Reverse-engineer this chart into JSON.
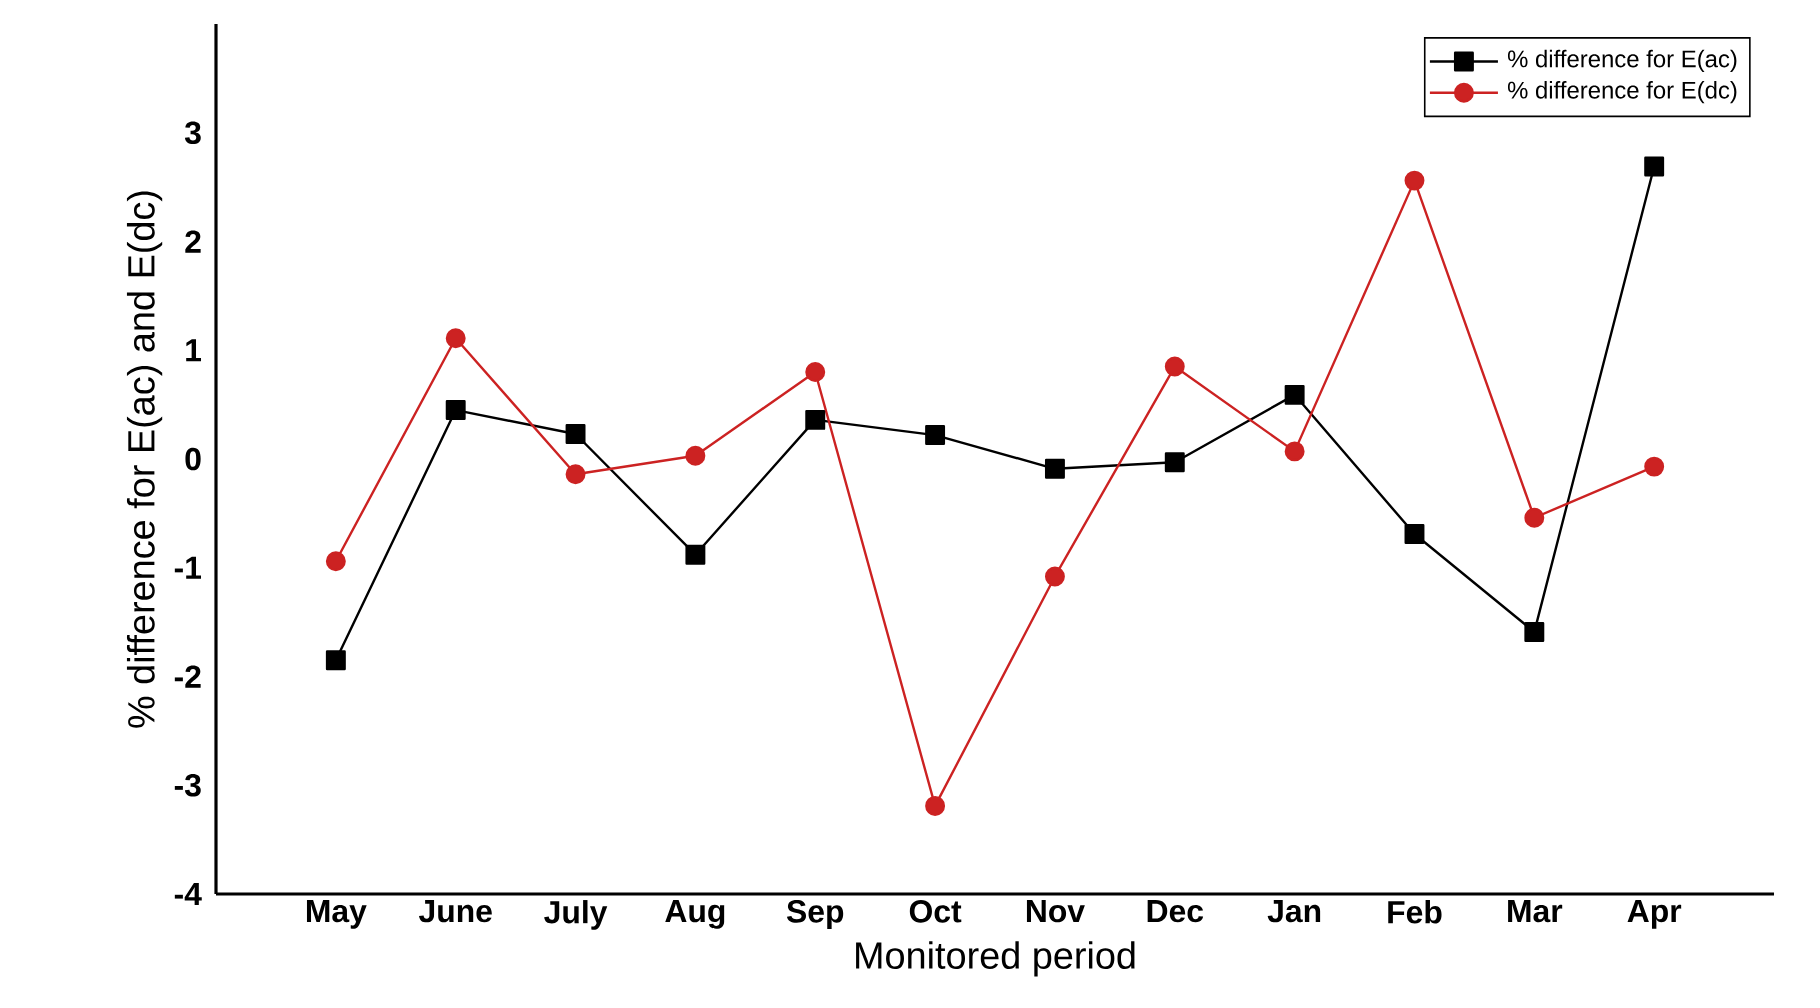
{
  "chart_data": {
    "type": "line",
    "xlabel": "Monitored period",
    "ylabel": "% difference for E(ac) and E(dc)",
    "categories": [
      "May",
      "June",
      "July",
      "Aug",
      "Sep",
      "Oct",
      "Nov",
      "Dec",
      "Jan",
      "Feb",
      "Mar",
      "Apr"
    ],
    "series": [
      {
        "name": "% difference for E(ac)",
        "color": "#000000",
        "marker": "square",
        "values": [
          -1.85,
          0.45,
          0.23,
          -0.88,
          0.36,
          0.22,
          -0.09,
          -0.03,
          0.59,
          -0.69,
          -1.59,
          2.69
        ]
      },
      {
        "name": "% difference for E(dc)",
        "color": "#cc2222",
        "marker": "circle",
        "values": [
          -0.94,
          1.11,
          -0.14,
          0.03,
          0.8,
          -3.19,
          -1.08,
          0.85,
          0.07,
          2.56,
          -0.54,
          -0.07
        ]
      }
    ],
    "ylim": [
      -4,
      4
    ],
    "yticks": [
      -4,
      -3,
      -2,
      -1,
      0,
      1,
      2,
      3
    ],
    "legend": "top right",
    "grid": false,
    "line_style": "solid"
  }
}
